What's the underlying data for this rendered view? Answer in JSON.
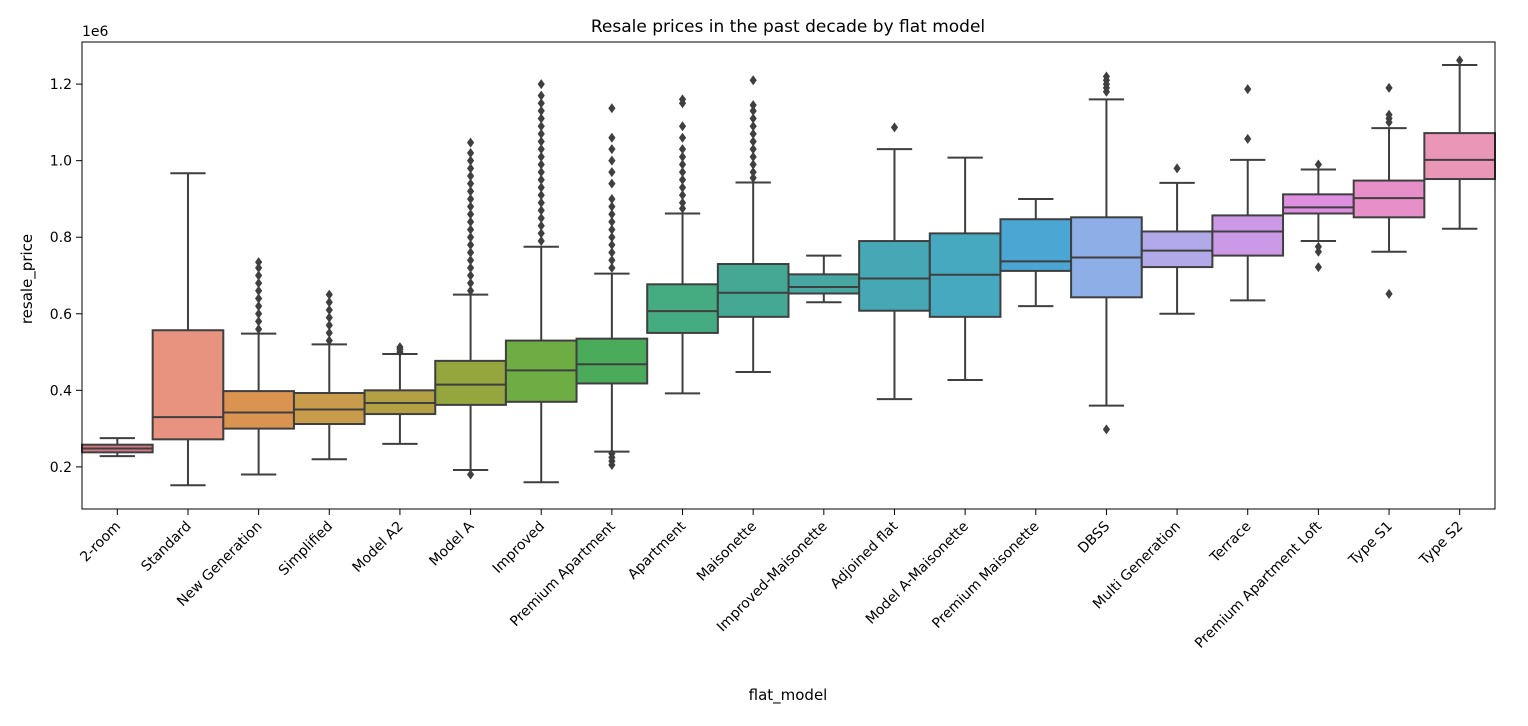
{
  "chart_data": {
    "type": "box",
    "title": "Resale prices in the past decade by flat model",
    "xlabel": "flat_model",
    "ylabel": "resale_price",
    "y_offset_label": "1e6",
    "ylim": [
      0.09,
      1.31
    ],
    "yticks": [
      0.2,
      0.4,
      0.6,
      0.8,
      1.0,
      1.2
    ],
    "ytick_labels": [
      "0.2",
      "0.4",
      "0.6",
      "0.8",
      "1.0",
      "1.2"
    ],
    "grid": false,
    "legend": "none",
    "categories": [
      "2-room",
      "Standard",
      "New Generation",
      "Simplified",
      "Model A2",
      "Model A",
      "Improved",
      "Premium Apartment",
      "Apartment",
      "Maisonette",
      "Improved-Maisonette",
      "Adjoined flat",
      "Model A-Maisonette",
      "Premium Maisonette",
      "DBSS",
      "Multi Generation",
      "Terrace",
      "Premium Apartment Loft",
      "Type S1",
      "Type S2"
    ],
    "boxes": [
      {
        "color": "#d47a83",
        "wlow": 0.228,
        "q1": 0.238,
        "median": 0.248,
        "q3": 0.258,
        "whigh": 0.275,
        "outliers": []
      },
      {
        "color": "#e8937f",
        "wlow": 0.152,
        "q1": 0.272,
        "median": 0.33,
        "q3": 0.557,
        "whigh": 0.967,
        "outliers": []
      },
      {
        "color": "#db9450",
        "wlow": 0.18,
        "q1": 0.3,
        "median": 0.342,
        "q3": 0.398,
        "whigh": 0.548,
        "outliers": [
          0.56,
          0.58,
          0.6,
          0.62,
          0.64,
          0.66,
          0.68,
          0.7,
          0.72,
          0.735
        ]
      },
      {
        "color": "#c99c4c",
        "wlow": 0.22,
        "q1": 0.312,
        "median": 0.35,
        "q3": 0.393,
        "whigh": 0.52,
        "outliers": [
          0.53,
          0.55,
          0.57,
          0.59,
          0.61,
          0.63,
          0.65
        ]
      },
      {
        "color": "#b3a045",
        "wlow": 0.26,
        "q1": 0.338,
        "median": 0.367,
        "q3": 0.4,
        "whigh": 0.495,
        "outliers": [
          0.5,
          0.507,
          0.513
        ]
      },
      {
        "color": "#95a63e",
        "wlow": 0.192,
        "q1": 0.362,
        "median": 0.415,
        "q3": 0.477,
        "whigh": 0.65,
        "outliers": [
          0.18,
          0.66,
          0.68,
          0.7,
          0.72,
          0.74,
          0.76,
          0.78,
          0.8,
          0.82,
          0.84,
          0.86,
          0.88,
          0.9,
          0.92,
          0.94,
          0.96,
          0.98,
          1.0,
          1.02,
          1.047
        ]
      },
      {
        "color": "#6ead44",
        "wlow": 0.16,
        "q1": 0.37,
        "median": 0.452,
        "q3": 0.53,
        "whigh": 0.775,
        "outliers": [
          0.79,
          0.81,
          0.83,
          0.85,
          0.87,
          0.89,
          0.91,
          0.93,
          0.95,
          0.97,
          0.99,
          1.01,
          1.03,
          1.05,
          1.07,
          1.09,
          1.11,
          1.13,
          1.15,
          1.17,
          1.2
        ]
      },
      {
        "color": "#4aac5a",
        "wlow": 0.24,
        "q1": 0.418,
        "median": 0.468,
        "q3": 0.535,
        "whigh": 0.705,
        "outliers": [
          0.205,
          0.215,
          0.225,
          0.235,
          0.72,
          0.74,
          0.76,
          0.78,
          0.8,
          0.82,
          0.84,
          0.86,
          0.88,
          0.9,
          0.94,
          0.97,
          1.0,
          1.03,
          1.06,
          1.137
        ]
      },
      {
        "color": "#45ac82",
        "wlow": 0.392,
        "q1": 0.55,
        "median": 0.607,
        "q3": 0.677,
        "whigh": 0.862,
        "outliers": [
          0.875,
          0.89,
          0.91,
          0.93,
          0.95,
          0.97,
          0.99,
          1.01,
          1.03,
          1.06,
          1.09,
          1.15,
          1.16
        ]
      },
      {
        "color": "#44a895",
        "wlow": 0.448,
        "q1": 0.592,
        "median": 0.655,
        "q3": 0.73,
        "whigh": 0.943,
        "outliers": [
          0.955,
          0.97,
          0.99,
          1.01,
          1.03,
          1.05,
          1.07,
          1.09,
          1.11,
          1.13,
          1.145,
          1.21
        ]
      },
      {
        "color": "#46a7a3",
        "wlow": 0.63,
        "q1": 0.653,
        "median": 0.67,
        "q3": 0.703,
        "whigh": 0.752,
        "outliers": []
      },
      {
        "color": "#45a8b4",
        "wlow": 0.377,
        "q1": 0.608,
        "median": 0.692,
        "q3": 0.79,
        "whigh": 1.03,
        "outliers": [
          1.087
        ]
      },
      {
        "color": "#47a9c0",
        "wlow": 0.427,
        "q1": 0.592,
        "median": 0.702,
        "q3": 0.81,
        "whigh": 1.008,
        "outliers": []
      },
      {
        "color": "#4aa6d2",
        "wlow": 0.62,
        "q1": 0.712,
        "median": 0.737,
        "q3": 0.847,
        "whigh": 0.9,
        "outliers": []
      },
      {
        "color": "#8daee6",
        "wlow": 0.36,
        "q1": 0.643,
        "median": 0.747,
        "q3": 0.852,
        "whigh": 1.16,
        "outliers": [
          0.298,
          1.18,
          1.19,
          1.2,
          1.21,
          1.22
        ]
      },
      {
        "color": "#b1a9e8",
        "wlow": 0.6,
        "q1": 0.722,
        "median": 0.765,
        "q3": 0.815,
        "whigh": 0.942,
        "outliers": [
          0.98
        ]
      },
      {
        "color": "#cc99e6",
        "wlow": 0.635,
        "q1": 0.752,
        "median": 0.815,
        "q3": 0.857,
        "whigh": 1.002,
        "outliers": [
          1.057,
          1.187
        ]
      },
      {
        "color": "#de8fe0",
        "wlow": 0.79,
        "q1": 0.862,
        "median": 0.878,
        "q3": 0.912,
        "whigh": 0.977,
        "outliers": [
          0.722,
          0.762,
          0.775,
          0.99
        ]
      },
      {
        "color": "#e78fc8",
        "wlow": 0.762,
        "q1": 0.852,
        "median": 0.902,
        "q3": 0.948,
        "whigh": 1.085,
        "outliers": [
          0.652,
          1.1,
          1.11,
          1.12,
          1.19
        ]
      },
      {
        "color": "#e996b7",
        "wlow": 0.822,
        "q1": 0.952,
        "median": 1.002,
        "q3": 1.072,
        "whigh": 1.25,
        "outliers": [
          1.262
        ]
      }
    ]
  }
}
